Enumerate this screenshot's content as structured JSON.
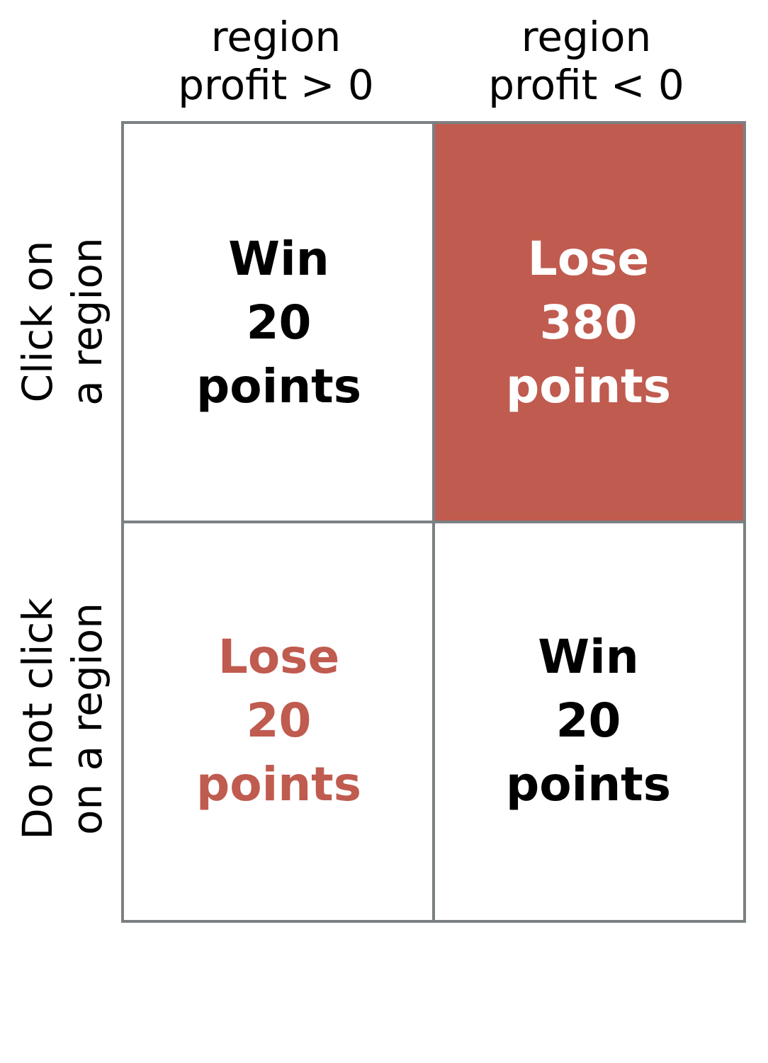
{
  "colors": {
    "grid_line": "#7b8083",
    "loss_fill": "#c05b4f",
    "loss_text": "#c05b4f",
    "win_text": "#000000",
    "inverse_text": "#ffffff"
  },
  "column_headers": [
    {
      "line1": "region",
      "line2": "profit > 0"
    },
    {
      "line1": "region",
      "line2": "profit < 0"
    }
  ],
  "row_headers": [
    {
      "line1": "Click on",
      "line2": "a region"
    },
    {
      "line1": "Do not click",
      "line2": "on a region"
    }
  ],
  "cells": {
    "top_left": {
      "outcome": "Win",
      "amount": "20",
      "unit": "points"
    },
    "top_right": {
      "outcome": "Lose",
      "amount": "380",
      "unit": "points"
    },
    "bottom_left": {
      "outcome": "Lose",
      "amount": "20",
      "unit": "points"
    },
    "bottom_right": {
      "outcome": "Win",
      "amount": "20",
      "unit": "points"
    }
  }
}
